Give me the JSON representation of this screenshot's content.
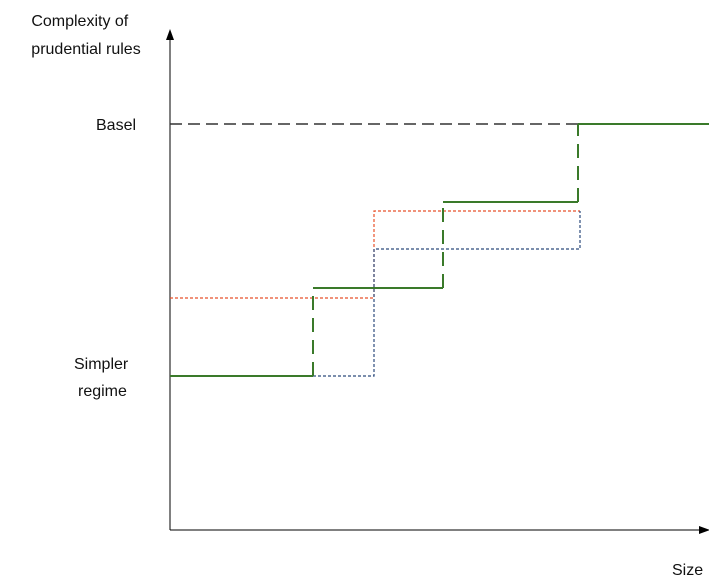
{
  "labels": {
    "y_axis": [
      "Complexity of",
      "prudential rules"
    ],
    "x_axis": "Size",
    "level_high": "Basel",
    "level_low": [
      "Simpler",
      "regime"
    ]
  },
  "colors": {
    "axis": "#000000",
    "basel_reference": "#333333",
    "green_path": "#3a7a2a",
    "orange_path": "#e8522a",
    "blue_path": "#2c4a7c"
  }
}
